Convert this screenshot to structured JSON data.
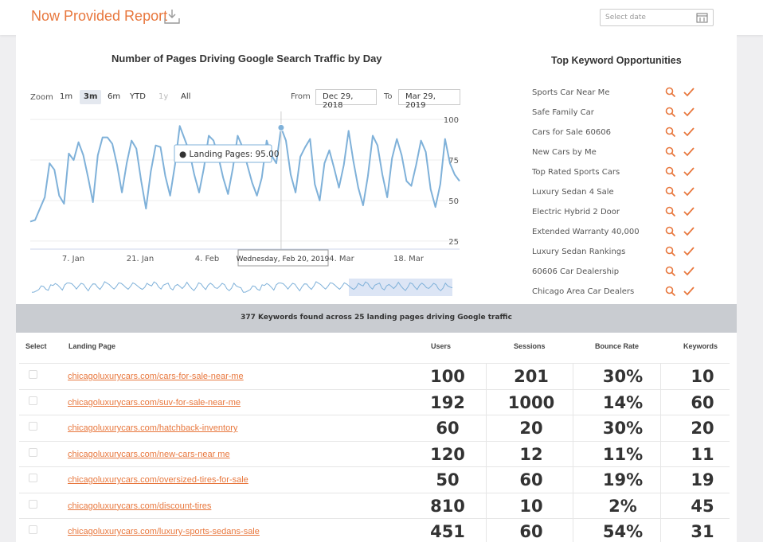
{
  "header": {
    "title": "Now Provided Report",
    "date_placeholder": "Select date"
  },
  "chart_panel": {
    "title": "Number of Pages Driving Google Search Traffic by Day",
    "zoom_label": "Zoom",
    "zoom_buttons": [
      "1m",
      "3m",
      "6m",
      "YTD",
      "1y",
      "All"
    ],
    "active_zoom": "3m",
    "from_label": "From",
    "from_value": "Dec 29, 2018",
    "to_label": "To",
    "to_value": "Mar 29, 2019",
    "tooltip_label": "Landing Pages: 95.00",
    "crosshair_date": "Wednesday, Feb 20, 2019"
  },
  "chart_data": {
    "type": "line",
    "series": [
      {
        "name": "Landing Pages",
        "values": [
          37,
          38,
          45,
          52,
          73,
          69,
          53,
          48,
          79,
          75,
          86,
          78,
          64,
          49,
          78,
          89,
          89,
          85,
          72,
          55,
          73,
          87,
          82,
          62,
          45,
          68,
          84,
          83,
          65,
          53,
          72,
          96,
          88,
          80,
          66,
          55,
          70,
          90,
          87,
          77,
          64,
          54,
          70,
          90,
          83,
          72,
          61,
          53,
          64,
          87,
          78,
          73,
          95,
          87,
          66,
          55,
          77,
          83,
          88,
          60,
          50,
          73,
          81,
          70,
          58,
          72,
          93,
          74,
          58,
          47,
          65,
          90,
          84,
          66,
          52,
          76,
          88,
          78,
          62,
          59,
          72,
          87,
          80,
          57,
          46,
          60,
          88,
          73,
          66,
          62
        ]
      }
    ],
    "x_start": "2018-12-29",
    "x_end": "2019-03-29",
    "x_tick_labels": [
      "7. Jan",
      "21. Jan",
      "4. Feb",
      "18. Feb",
      "4. Mar",
      "18. Mar"
    ],
    "y_tick_labels": [
      "25",
      "50",
      "75",
      "100"
    ],
    "ylim": [
      20,
      105
    ],
    "tooltip_point": {
      "x": "2019-02-20",
      "y": 95
    },
    "grid": true
  },
  "keywords": {
    "title": "Top Keyword Opportunities",
    "items": [
      "Sports Car Near Me",
      "Safe Family Car",
      "Cars for Sale 60606",
      "New Cars by Me",
      "Top Rated Sports Cars",
      "Luxury Sedan 4 Sale",
      "Electric Hybrid 2 Door",
      "Extended Warranty 40,000",
      "Luxury Sedan Rankings",
      "60606 Car Dealership",
      "Chicago Area Car Dealers"
    ]
  },
  "summary": "377 Keywords found across 25 landing pages driving Google traffic",
  "table": {
    "headers": {
      "select": "Select",
      "page": "Landing Page",
      "users": "Users",
      "sessions": "Sessions",
      "bounce": "Bounce Rate",
      "keywords": "Keywords"
    },
    "rows": [
      {
        "page": "chicagoluxurycars.com/cars-for-sale-near-me",
        "users": "100",
        "sessions": "201",
        "bounce": "30%",
        "keywords": "10"
      },
      {
        "page": "chicagoluxurycars.com/suv-for-sale-near-me",
        "users": "192",
        "sessions": "1000",
        "bounce": "14%",
        "keywords": "60"
      },
      {
        "page": "chicagoluxurycars.com/hatchback-inventory",
        "users": "60",
        "sessions": "20",
        "bounce": "30%",
        "keywords": "20"
      },
      {
        "page": "chicagoluxurycars.com/new-cars-near me",
        "users": "120",
        "sessions": "12",
        "bounce": "11%",
        "keywords": "11"
      },
      {
        "page": "chicagoluxurycars.com/oversized-tires-for-sale",
        "users": "50",
        "sessions": "60",
        "bounce": "19%",
        "keywords": "19"
      },
      {
        "page": "chicagoluxurycars.com/discount-tires",
        "users": "810",
        "sessions": "10",
        "bounce": "2%",
        "keywords": "45"
      },
      {
        "page": "chicagoluxurycars.com/luxury-sports-sedans-sale",
        "users": "451",
        "sessions": "60",
        "bounce": "54%",
        "keywords": "31"
      }
    ]
  },
  "colors": {
    "accent": "#e8773d",
    "line": "#7fb1d9",
    "summary_bg": "#c9ccd1"
  }
}
